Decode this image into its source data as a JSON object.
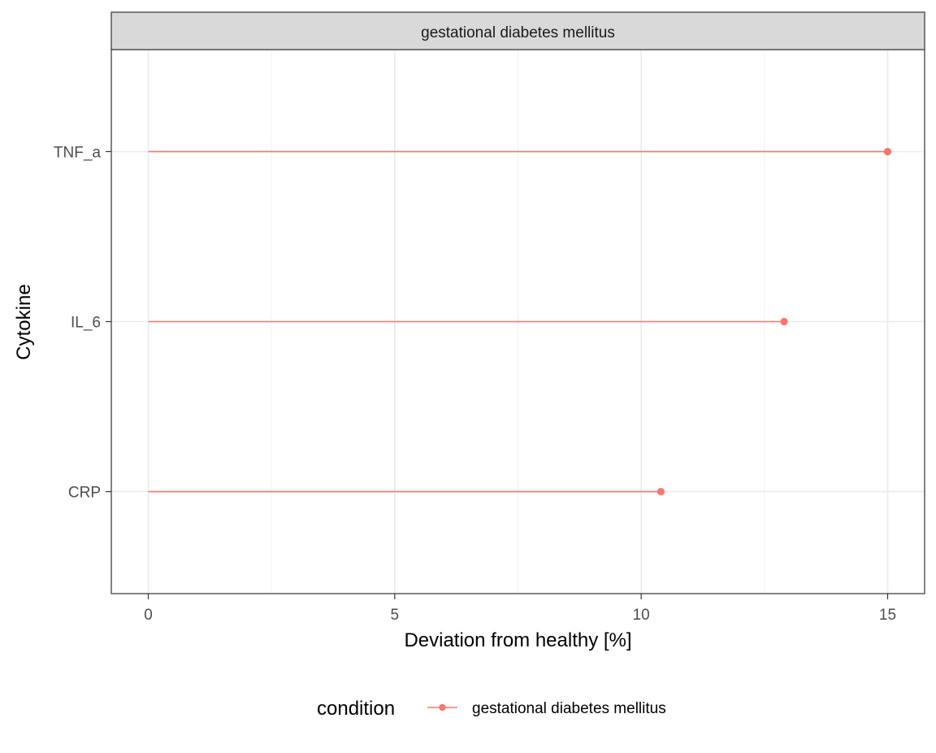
{
  "chart_data": {
    "type": "lollipop",
    "facet_label": "gestational diabetes mellitus",
    "xlabel": "Deviation from healthy [%]",
    "ylabel": "Cytokine",
    "xlim": [
      -0.75,
      15.75
    ],
    "x_ticks": [
      "0",
      "5",
      "10",
      "15"
    ],
    "x_tick_values": [
      0,
      5,
      10,
      15
    ],
    "x_minor_ticks": [
      2.5,
      7.5,
      12.5
    ],
    "categories": [
      "CRP",
      "IL_6",
      "TNF_a"
    ],
    "grid": true,
    "legend": {
      "position": "bottom",
      "title": "condition",
      "entries": [
        "gestational diabetes mellitus"
      ]
    },
    "series": [
      {
        "name": "gestational diabetes mellitus",
        "color": "#f8766d",
        "start": 0,
        "values": [
          10.4,
          12.9,
          15.0
        ]
      }
    ]
  }
}
